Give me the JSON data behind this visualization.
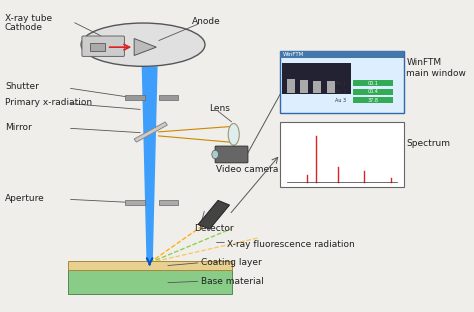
{
  "colors": {
    "bg_color": "#f0eeea",
    "beam_blue": "#1e90ff",
    "beam_arrow": "#0055cc",
    "red_beam": "#dd2222",
    "orange_beam": "#ff9900",
    "green_sample": "#88cc88",
    "tan_coating": "#e8d090",
    "circle_fill": "#e8e8e8",
    "circle_edge": "#555555",
    "device_gray": "#aaaaaa",
    "device_dark": "#888888",
    "window_blue": "#3399cc",
    "window_light": "#ddeeff",
    "spectrum_bg": "#ffffff",
    "spectrum_peak": "#dd2222",
    "annotation_line": "#555555",
    "text_color": "#222222",
    "shutter_color": "#999999",
    "mirror_color": "#bbbbbb"
  },
  "labels": {
    "xray_tube": "X-ray tube",
    "cathode": "Cathode",
    "anode": "Anode",
    "shutter": "Shutter",
    "primary_xrad": "Primary x-radiation",
    "mirror": "Mirror",
    "lens": "Lens",
    "video_camera": "Video camera",
    "winftm": "WinFTM\nmain window",
    "spectrum": "Spectrum",
    "aperture": "Aperture",
    "detector": "Detector",
    "xrf_rad": "X-ray fluorescence radiation",
    "coating": "Coating layer",
    "base": "Base material"
  },
  "font_sizes": {
    "label": 6.5,
    "small": 5.5
  }
}
